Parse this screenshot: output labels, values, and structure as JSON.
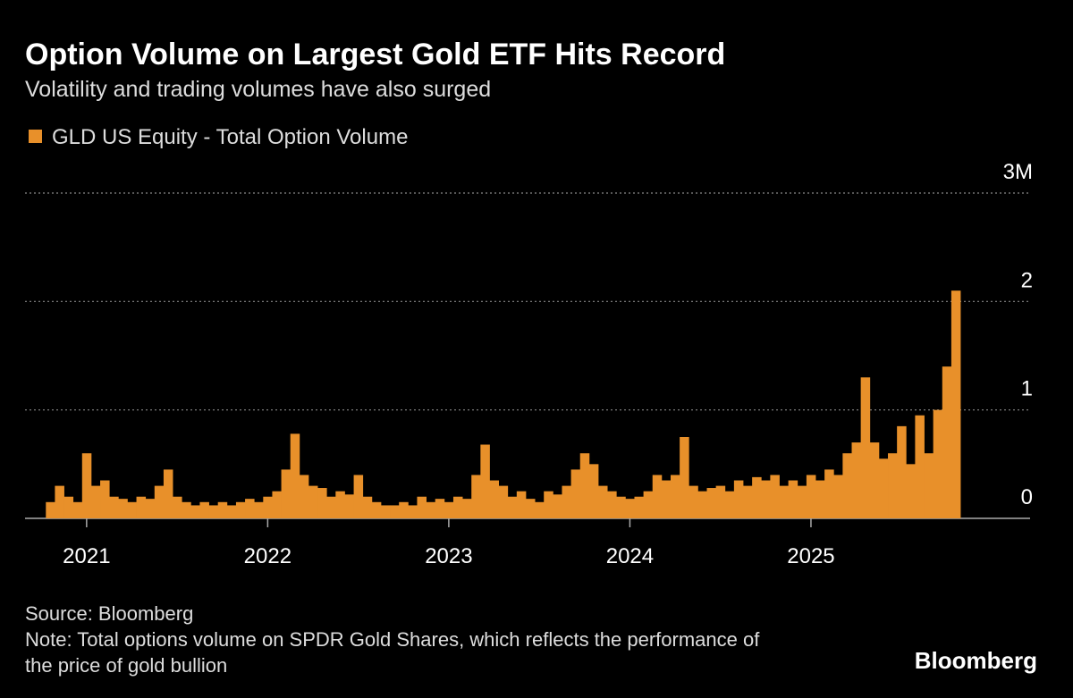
{
  "chart_data": {
    "type": "bar",
    "title": "Option Volume on Largest Gold ETF Hits Record",
    "subtitle": "Volatility and trading volumes have also surged",
    "source": "Source: Bloomberg",
    "note": "Note: Total options volume on SPDR Gold Shares, which reflects the performance of the price of gold bullion",
    "brand": "Bloomberg",
    "x": [
      2020.8,
      2020.85,
      2020.9,
      2020.95,
      2021.0,
      2021.05,
      2021.1,
      2021.15,
      2021.2,
      2021.25,
      2021.3,
      2021.35,
      2021.4,
      2021.45,
      2021.5,
      2021.55,
      2021.6,
      2021.65,
      2021.7,
      2021.75,
      2021.8,
      2021.85,
      2021.9,
      2021.95,
      2022.0,
      2022.05,
      2022.1,
      2022.15,
      2022.2,
      2022.25,
      2022.3,
      2022.35,
      2022.4,
      2022.45,
      2022.5,
      2022.55,
      2022.6,
      2022.65,
      2022.7,
      2022.75,
      2022.8,
      2022.85,
      2022.9,
      2022.95,
      2023.0,
      2023.05,
      2023.1,
      2023.15,
      2023.2,
      2023.25,
      2023.3,
      2023.35,
      2023.4,
      2023.45,
      2023.5,
      2023.55,
      2023.6,
      2023.65,
      2023.7,
      2023.75,
      2023.8,
      2023.85,
      2023.9,
      2023.95,
      2024.0,
      2024.05,
      2024.1,
      2024.15,
      2024.2,
      2024.25,
      2024.3,
      2024.35,
      2024.4,
      2024.45,
      2024.5,
      2024.55,
      2024.6,
      2024.65,
      2024.7,
      2024.75,
      2024.8,
      2024.85,
      2024.9,
      2024.95,
      2025.0,
      2025.05,
      2025.1,
      2025.15,
      2025.2,
      2025.25,
      2025.3,
      2025.35,
      2025.4,
      2025.45,
      2025.5,
      2025.55,
      2025.6,
      2025.65,
      2025.7,
      2025.75,
      2025.8
    ],
    "series": [
      {
        "name": "GLD US Equity - Total Option Volume",
        "color": "#e8902a",
        "values": [
          0.15,
          0.3,
          0.2,
          0.15,
          0.6,
          0.3,
          0.35,
          0.2,
          0.18,
          0.15,
          0.2,
          0.18,
          0.3,
          0.45,
          0.2,
          0.15,
          0.12,
          0.15,
          0.12,
          0.15,
          0.12,
          0.15,
          0.18,
          0.15,
          0.2,
          0.25,
          0.45,
          0.78,
          0.4,
          0.3,
          0.28,
          0.2,
          0.25,
          0.22,
          0.4,
          0.2,
          0.15,
          0.12,
          0.12,
          0.15,
          0.12,
          0.2,
          0.15,
          0.18,
          0.15,
          0.2,
          0.18,
          0.4,
          0.68,
          0.35,
          0.3,
          0.2,
          0.25,
          0.18,
          0.15,
          0.25,
          0.22,
          0.3,
          0.45,
          0.6,
          0.5,
          0.3,
          0.25,
          0.2,
          0.18,
          0.2,
          0.25,
          0.4,
          0.35,
          0.4,
          0.75,
          0.3,
          0.25,
          0.28,
          0.3,
          0.25,
          0.35,
          0.3,
          0.38,
          0.35,
          0.4,
          0.3,
          0.35,
          0.3,
          0.4,
          0.35,
          0.45,
          0.4,
          0.6,
          0.7,
          1.3,
          0.7,
          0.55,
          0.6,
          0.85,
          0.5,
          0.95,
          0.6,
          1.0,
          1.4,
          2.1
        ]
      }
    ],
    "xlim": [
      2020.66,
      2026.21
    ],
    "xticks": [
      2021,
      2022,
      2023,
      2024,
      2025
    ],
    "ylim": [
      0,
      3
    ],
    "yticks": [
      0,
      1,
      2,
      {
        "value": 3,
        "label": "3M"
      }
    ],
    "grid": true
  }
}
